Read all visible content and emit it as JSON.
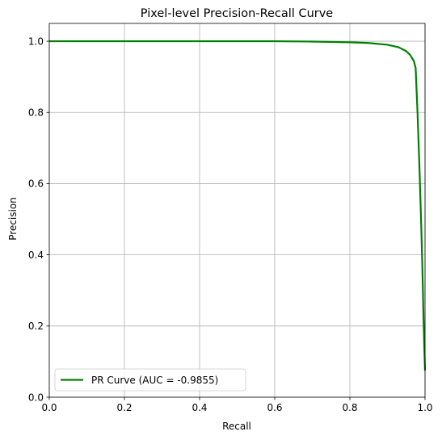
{
  "chart_data": {
    "type": "line",
    "title": "Pixel-level Precision-Recall Curve",
    "xlabel": "Recall",
    "ylabel": "Precision",
    "xlim": [
      0,
      1
    ],
    "ylim": [
      0,
      1.05
    ],
    "x_ticks": [
      0.0,
      0.2,
      0.4,
      0.6,
      0.8,
      1.0
    ],
    "y_ticks": [
      0.0,
      0.2,
      0.4,
      0.6,
      0.8,
      1.0
    ],
    "x_tick_labels": [
      "0.0",
      "0.2",
      "0.4",
      "0.6",
      "0.8",
      "1.0"
    ],
    "y_tick_labels": [
      "0.0",
      "0.2",
      "0.4",
      "0.6",
      "0.8",
      "1.0"
    ],
    "grid": true,
    "legend_position": "lower-left",
    "series": [
      {
        "name": "PR Curve (AUC = -0.9855)",
        "color": "#008000",
        "x": [
          0.0,
          0.2,
          0.4,
          0.6,
          0.7,
          0.8,
          0.85,
          0.9,
          0.93,
          0.95,
          0.96,
          0.97,
          0.975,
          0.98,
          0.985,
          0.99,
          0.993,
          0.996,
          0.998,
          1.0
        ],
        "y": [
          1.0,
          1.0,
          1.0,
          1.0,
          0.999,
          0.997,
          0.995,
          0.99,
          0.983,
          0.972,
          0.962,
          0.945,
          0.925,
          0.8,
          0.65,
          0.48,
          0.36,
          0.22,
          0.14,
          0.075
        ]
      }
    ]
  }
}
